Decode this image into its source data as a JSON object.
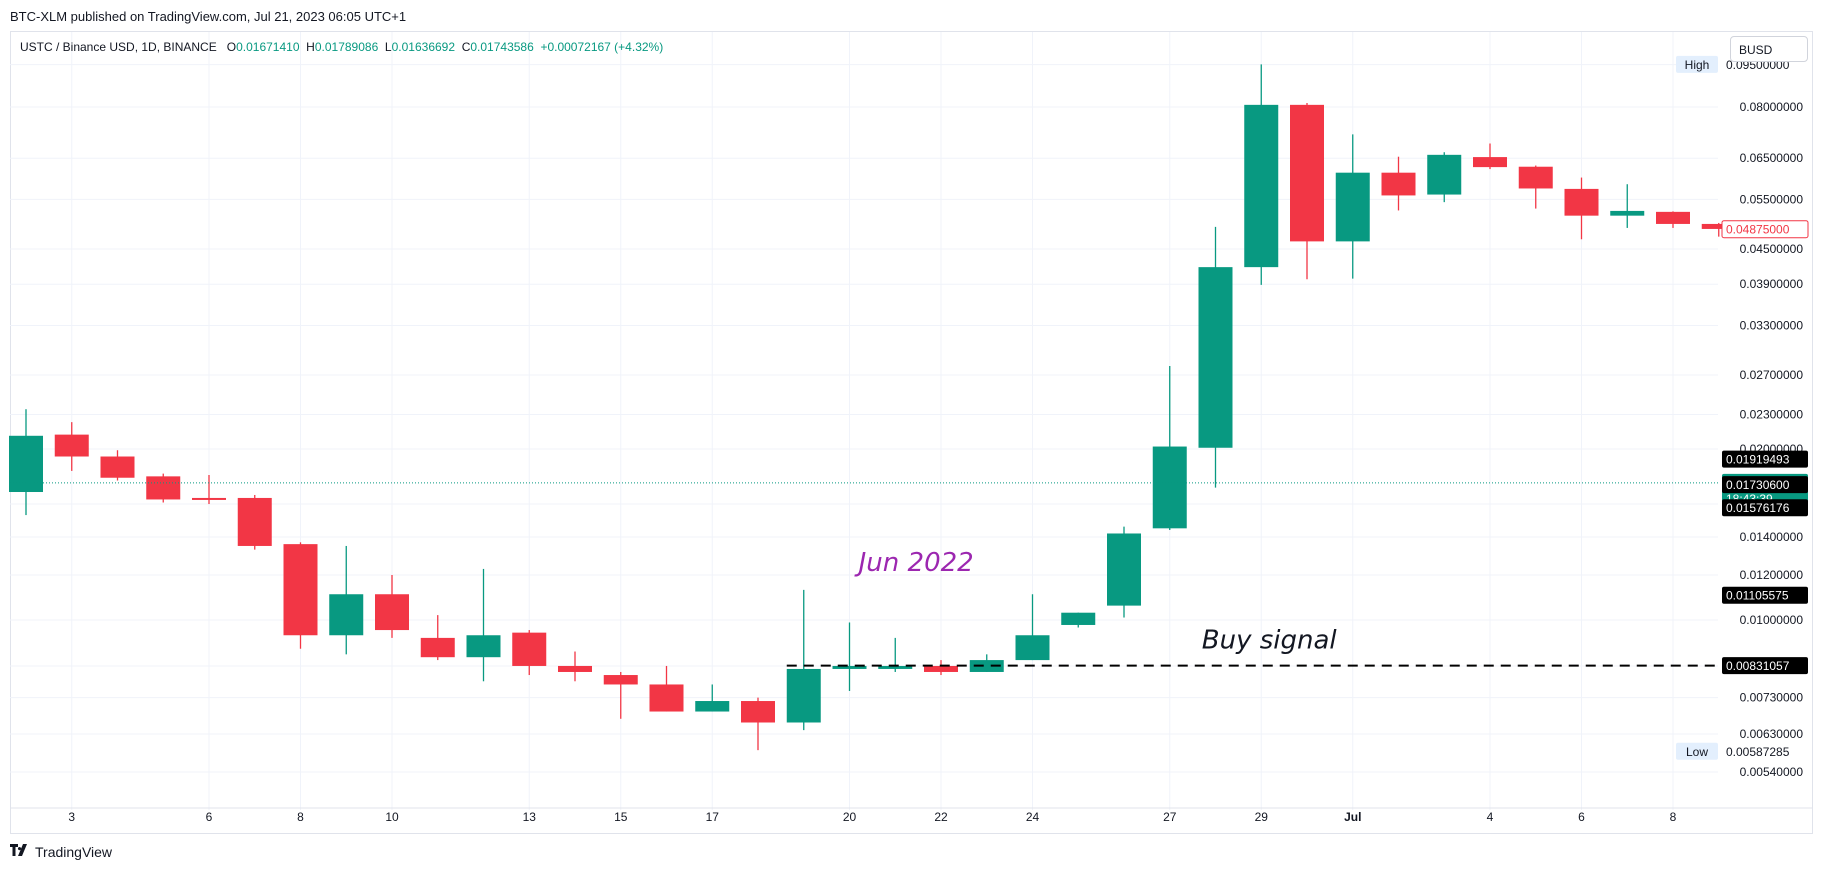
{
  "header": {
    "published_by": "BTC-XLM published on TradingView.com, Jul 21, 2023 06:05 UTC+1"
  },
  "legend": {
    "symbol": "USTC / Binance USD, 1D, BINANCE",
    "open_label": "O",
    "open": "0.01671410",
    "high_label": "H",
    "high": "0.01789086",
    "low_label": "L",
    "low": "0.01636692",
    "close_label": "C",
    "close": "0.01743586",
    "change": "+0.00072167 (+4.32%)"
  },
  "currency_badge": "BUSD",
  "footer": {
    "brand": "TradingView",
    "icon": "tradingview-logo-icon"
  },
  "colors": {
    "up": "#089981",
    "down": "#f23645",
    "annotation_purple": "#9c27b0",
    "grid": "#f0f3fa"
  },
  "chart_data": {
    "type": "candlestick",
    "scale": "log",
    "ylim": [
      0.0049,
      0.097
    ],
    "y_ticks": [
      "0.00540000",
      "0.00630000",
      "0.00730000",
      "0.00830000",
      "0.01000000",
      "0.01200000",
      "0.01400000",
      "0.01600000",
      "0.02000000",
      "0.02300000",
      "0.02700000",
      "0.03300000",
      "0.03900000",
      "0.04500000",
      "0.05500000",
      "0.06500000",
      "0.08000000",
      "0.09500000"
    ],
    "x_ticks": [
      {
        "label": "3",
        "index": 1
      },
      {
        "label": "6",
        "index": 4
      },
      {
        "label": "8",
        "index": 6
      },
      {
        "label": "10",
        "index": 8
      },
      {
        "label": "13",
        "index": 11
      },
      {
        "label": "15",
        "index": 13
      },
      {
        "label": "17",
        "index": 15
      },
      {
        "label": "20",
        "index": 18
      },
      {
        "label": "22",
        "index": 20
      },
      {
        "label": "24",
        "index": 22
      },
      {
        "label": "27",
        "index": 25
      },
      {
        "label": "29",
        "index": 27
      },
      {
        "label": "Jul",
        "index": 29
      },
      {
        "label": "4",
        "index": 32
      },
      {
        "label": "6",
        "index": 34
      },
      {
        "label": "8",
        "index": 36
      }
    ],
    "candles": [
      {
        "o": 0.0168,
        "h": 0.0235,
        "l": 0.0153,
        "c": 0.0211
      },
      {
        "o": 0.0212,
        "h": 0.0223,
        "l": 0.0183,
        "c": 0.0194
      },
      {
        "o": 0.0194,
        "h": 0.0199,
        "l": 0.0176,
        "c": 0.0178
      },
      {
        "o": 0.0179,
        "h": 0.0181,
        "l": 0.0161,
        "c": 0.0163
      },
      {
        "o": 0.0164,
        "h": 0.018,
        "l": 0.016,
        "c": 0.0163
      },
      {
        "o": 0.0164,
        "h": 0.0166,
        "l": 0.0133,
        "c": 0.0135
      },
      {
        "o": 0.0136,
        "h": 0.0137,
        "l": 0.0089,
        "c": 0.0094
      },
      {
        "o": 0.0094,
        "h": 0.0135,
        "l": 0.0087,
        "c": 0.0111
      },
      {
        "o": 0.0111,
        "h": 0.012,
        "l": 0.0093,
        "c": 0.0096
      },
      {
        "o": 0.0093,
        "h": 0.0102,
        "l": 0.0085,
        "c": 0.0086
      },
      {
        "o": 0.0086,
        "h": 0.0123,
        "l": 0.0078,
        "c": 0.0094
      },
      {
        "o": 0.0095,
        "h": 0.0096,
        "l": 0.008,
        "c": 0.0083
      },
      {
        "o": 0.0083,
        "h": 0.0088,
        "l": 0.0078,
        "c": 0.0081
      },
      {
        "o": 0.008,
        "h": 0.0081,
        "l": 0.0067,
        "c": 0.0077
      },
      {
        "o": 0.0077,
        "h": 0.0083,
        "l": 0.0069,
        "c": 0.0069
      },
      {
        "o": 0.0069,
        "h": 0.0077,
        "l": 0.0069,
        "c": 0.0072
      },
      {
        "o": 0.0072,
        "h": 0.0073,
        "l": 0.0059,
        "c": 0.0066
      },
      {
        "o": 0.0066,
        "h": 0.0113,
        "l": 0.0064,
        "c": 0.0082
      },
      {
        "o": 0.0082,
        "h": 0.0099,
        "l": 0.0075,
        "c": 0.0083
      },
      {
        "o": 0.0082,
        "h": 0.0093,
        "l": 0.0081,
        "c": 0.0083
      },
      {
        "o": 0.0083,
        "h": 0.0085,
        "l": 0.008,
        "c": 0.0081
      },
      {
        "o": 0.0081,
        "h": 0.0087,
        "l": 0.0081,
        "c": 0.0085
      },
      {
        "o": 0.0085,
        "h": 0.0111,
        "l": 0.0085,
        "c": 0.0094
      },
      {
        "o": 0.0098,
        "h": 0.0103,
        "l": 0.0097,
        "c": 0.0103
      },
      {
        "o": 0.0106,
        "h": 0.0146,
        "l": 0.0101,
        "c": 0.0142
      },
      {
        "o": 0.0145,
        "h": 0.028,
        "l": 0.0144,
        "c": 0.0202
      },
      {
        "o": 0.0201,
        "h": 0.0492,
        "l": 0.0171,
        "c": 0.0418
      },
      {
        "o": 0.0418,
        "h": 0.0951,
        "l": 0.0389,
        "c": 0.0807
      },
      {
        "o": 0.0807,
        "h": 0.0813,
        "l": 0.0398,
        "c": 0.0464
      },
      {
        "o": 0.0464,
        "h": 0.0716,
        "l": 0.0399,
        "c": 0.0613
      },
      {
        "o": 0.0613,
        "h": 0.0654,
        "l": 0.0526,
        "c": 0.0559
      },
      {
        "o": 0.0561,
        "h": 0.0666,
        "l": 0.0544,
        "c": 0.0659
      },
      {
        "o": 0.0653,
        "h": 0.069,
        "l": 0.0622,
        "c": 0.0627
      },
      {
        "o": 0.0628,
        "h": 0.0631,
        "l": 0.053,
        "c": 0.0575
      },
      {
        "o": 0.0574,
        "h": 0.0601,
        "l": 0.0468,
        "c": 0.0515
      },
      {
        "o": 0.0515,
        "h": 0.0585,
        "l": 0.049,
        "c": 0.0525
      },
      {
        "o": 0.0523,
        "h": 0.0524,
        "l": 0.049,
        "c": 0.0498
      },
      {
        "o": 0.0498,
        "h": 0.05,
        "l": 0.0473,
        "c": 0.0488
      }
    ],
    "current_price_line": 0.01743586,
    "buy_signal_level": 0.00831057,
    "price_labels": [
      {
        "kind": "high",
        "tag": "High",
        "value": "0.09500000",
        "y": 0.0951,
        "bg": "#ffffff",
        "fg": "#131722"
      },
      {
        "kind": "last",
        "value": "0.04875000",
        "y": 0.04875,
        "bg": "#ffffff",
        "fg": "#f23645",
        "border": "#f23645"
      },
      {
        "kind": "line",
        "value": "0.01919493",
        "y": 0.01919493,
        "bg": "#000000",
        "fg": "#ffffff"
      },
      {
        "kind": "current",
        "value": "0.01743586",
        "countdown": "18:43:39",
        "y": 0.01743586,
        "bg": "#089981",
        "fg": "#ffffff"
      },
      {
        "kind": "line",
        "value": "0.01730600",
        "y": 0.017306,
        "bg": "#000000",
        "fg": "#ffffff"
      },
      {
        "kind": "line",
        "value": "0.01576176",
        "y": 0.01576176,
        "bg": "#000000",
        "fg": "#ffffff"
      },
      {
        "kind": "line",
        "value": "0.01105575",
        "y": 0.01105575,
        "bg": "#000000",
        "fg": "#ffffff"
      },
      {
        "kind": "line",
        "value": "0.00831057",
        "y": 0.00831057,
        "bg": "#000000",
        "fg": "#ffffff"
      },
      {
        "kind": "low",
        "tag": "Low",
        "value": "0.00587285",
        "y": 0.00587285,
        "bg": "#ffffff",
        "fg": "#131722"
      }
    ],
    "annotations": [
      {
        "text": "Jun 2022",
        "color": "#9c27b0",
        "index": 18.2,
        "y": 0.0122
      },
      {
        "text": "Buy signal",
        "color": "#131722",
        "index": 25.7,
        "y": 0.0089
      }
    ]
  }
}
